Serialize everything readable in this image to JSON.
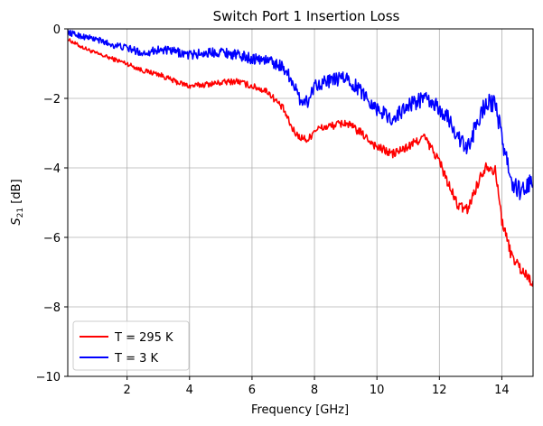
{
  "chart_data": {
    "type": "line",
    "title": "Switch Port 1 Insertion Loss",
    "xlabel": "Frequency [GHz]",
    "ylabel_main": "S",
    "ylabel_sub": "21",
    "ylabel_unit": " [dB]",
    "xlim": [
      0.1,
      15
    ],
    "ylim": [
      -10,
      0
    ],
    "xticks": [
      2,
      4,
      6,
      8,
      10,
      12,
      14
    ],
    "yticks": [
      0,
      -2,
      -4,
      -6,
      -8,
      -10
    ],
    "xtick_labels": [
      "2",
      "4",
      "6",
      "8",
      "10",
      "12",
      "14"
    ],
    "ytick_labels": [
      "0",
      "−2",
      "−4",
      "−6",
      "−8",
      "−10"
    ],
    "grid": true,
    "legend_position": "lower-left",
    "series": [
      {
        "name": "T = 295 K",
        "color": "#ff0000",
        "x": [
          0.1,
          0.5,
          1.0,
          1.5,
          2.0,
          2.5,
          3.0,
          3.5,
          4.0,
          4.5,
          5.0,
          5.5,
          6.0,
          6.5,
          7.0,
          7.3,
          7.5,
          7.8,
          8.0,
          8.5,
          9.0,
          9.5,
          10.0,
          10.5,
          11.0,
          11.5,
          12.0,
          12.3,
          12.6,
          12.9,
          13.2,
          13.5,
          13.8,
          14.0,
          14.3,
          14.6,
          15.0
        ],
        "y": [
          -0.3,
          -0.5,
          -0.7,
          -0.85,
          -1.0,
          -1.2,
          -1.3,
          -1.5,
          -1.65,
          -1.6,
          -1.55,
          -1.5,
          -1.65,
          -1.8,
          -2.3,
          -2.9,
          -3.1,
          -3.2,
          -2.9,
          -2.8,
          -2.7,
          -3.0,
          -3.4,
          -3.6,
          -3.4,
          -3.1,
          -3.8,
          -4.5,
          -5.1,
          -5.2,
          -4.5,
          -3.9,
          -4.1,
          -5.5,
          -6.5,
          -6.9,
          -7.3
        ]
      },
      {
        "name": "T = 3 K",
        "color": "#0000ff",
        "x": [
          0.1,
          0.5,
          1.0,
          1.5,
          2.0,
          2.5,
          3.0,
          3.5,
          4.0,
          4.5,
          5.0,
          5.5,
          6.0,
          6.5,
          7.0,
          7.3,
          7.5,
          7.8,
          8.0,
          8.5,
          9.0,
          9.5,
          10.0,
          10.5,
          11.0,
          11.5,
          12.0,
          12.3,
          12.6,
          12.9,
          13.2,
          13.5,
          13.8,
          14.0,
          14.3,
          14.6,
          15.0
        ],
        "y": [
          -0.1,
          -0.2,
          -0.3,
          -0.45,
          -0.55,
          -0.7,
          -0.6,
          -0.65,
          -0.75,
          -0.7,
          -0.65,
          -0.75,
          -0.85,
          -0.9,
          -1.1,
          -1.5,
          -2.0,
          -2.1,
          -1.6,
          -1.5,
          -1.4,
          -1.8,
          -2.3,
          -2.6,
          -2.2,
          -2.0,
          -2.3,
          -2.6,
          -3.1,
          -3.5,
          -2.7,
          -2.1,
          -2.2,
          -3.1,
          -4.4,
          -4.7,
          -4.4
        ]
      }
    ]
  }
}
